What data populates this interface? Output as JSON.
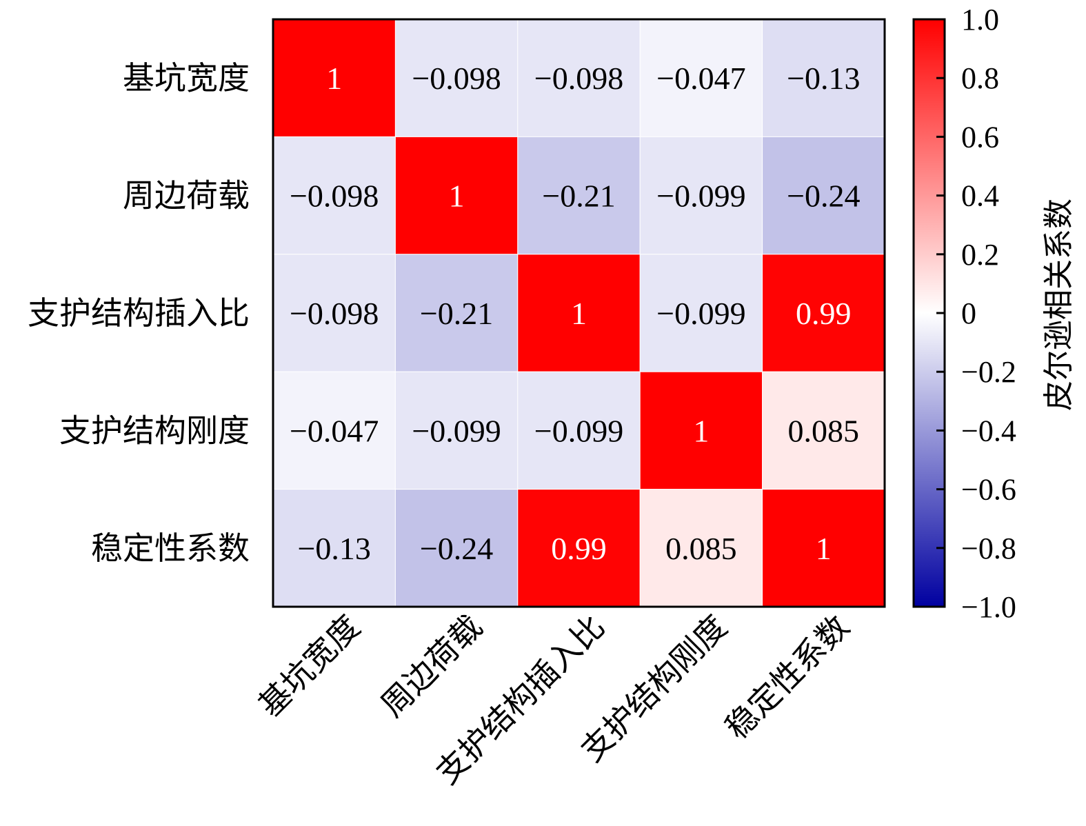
{
  "chart_data": {
    "type": "heatmap",
    "title": "",
    "row_labels": [
      "基坑宽度",
      "周边荷载",
      "支护结构插入比",
      "支护结构刚度",
      "稳定性系数"
    ],
    "col_labels": [
      "基坑宽度",
      "周边荷载",
      "支护结构插入比",
      "支护结构刚度",
      "稳定性系数"
    ],
    "values": [
      [
        1,
        -0.098,
        -0.098,
        -0.047,
        -0.13
      ],
      [
        -0.098,
        1,
        -0.21,
        -0.099,
        -0.24
      ],
      [
        -0.098,
        -0.21,
        1,
        -0.099,
        0.99
      ],
      [
        -0.047,
        -0.099,
        -0.099,
        1,
        0.085
      ],
      [
        -0.13,
        -0.24,
        0.99,
        0.085,
        1
      ]
    ],
    "value_labels": [
      [
        "1",
        "−0.098",
        "−0.098",
        "−0.047",
        "−0.13"
      ],
      [
        "−0.098",
        "1",
        "−0.21",
        "−0.099",
        "−0.24"
      ],
      [
        "−0.098",
        "−0.21",
        "1",
        "−0.099",
        "0.99"
      ],
      [
        "−0.047",
        "−0.099",
        "−0.099",
        "1",
        "0.085"
      ],
      [
        "−0.13",
        "−0.24",
        "0.99",
        "0.085",
        "1"
      ]
    ],
    "colorbar": {
      "label": "皮尔逊相关系数",
      "range": [
        -1.0,
        1.0
      ],
      "ticks": [
        1.0,
        0.8,
        0.6,
        0.4,
        0.2,
        0,
        -0.2,
        -0.4,
        -0.6,
        -0.8,
        -1.0
      ],
      "tick_labels": [
        "1.0",
        "0.8",
        "0.6",
        "0.4",
        "0.2",
        "0",
        "−0.2",
        "−0.4",
        "−0.6",
        "−0.8",
        "−1.0"
      ],
      "colors": {
        "negative": "#0000a0",
        "zero": "#ffffff",
        "positive": "#ff0000"
      }
    }
  }
}
